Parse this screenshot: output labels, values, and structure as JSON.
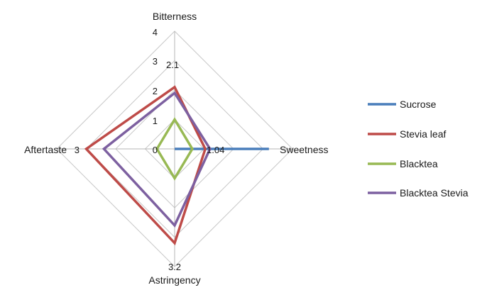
{
  "chart_data": {
    "type": "radar",
    "categories": [
      "Bitterness",
      "Sweetness",
      "Astringency",
      "Aftertaste"
    ],
    "axis_range": [
      0,
      4
    ],
    "ticks": [
      "0",
      "1",
      "2",
      "3",
      "4"
    ],
    "grid": true,
    "legend_position": "right",
    "series": [
      {
        "name": "Sucrose",
        "values": [
          0,
          3.2,
          0,
          0
        ],
        "color": "#4a7ebb"
      },
      {
        "name": "Stevia leaf",
        "values": [
          2.1,
          1.04,
          3.2,
          3.0
        ],
        "color": "#be4b48"
      },
      {
        "name": "Blacktea",
        "values": [
          1.0,
          0.6,
          1.0,
          0.6
        ],
        "color": "#98b954"
      },
      {
        "name": "Blacktea Stevia",
        "values": [
          1.9,
          1.2,
          2.6,
          2.4
        ],
        "color": "#7d60a0"
      }
    ],
    "data_labels": [
      {
        "category": "Bitterness",
        "text": "2.1"
      },
      {
        "category": "Sweetness",
        "text": "1.04"
      },
      {
        "category": "Astringency",
        "text": "3.2"
      },
      {
        "category": "Aftertaste",
        "text": "3"
      }
    ]
  }
}
